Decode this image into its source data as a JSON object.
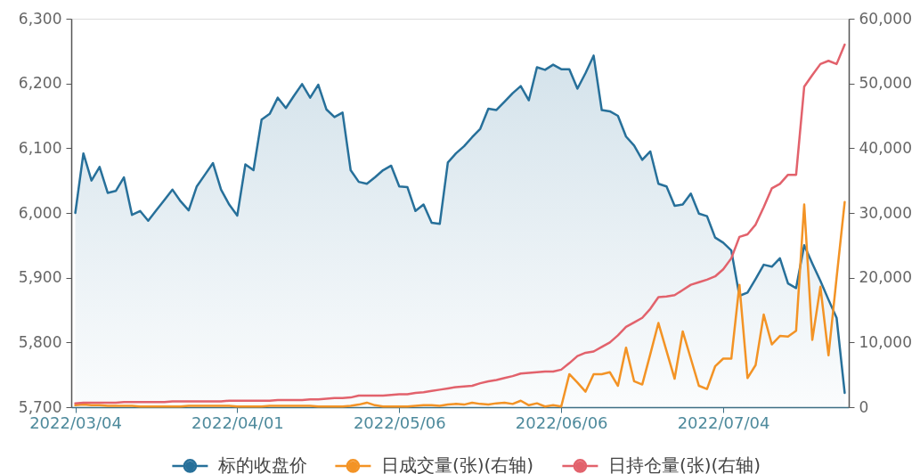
{
  "chart_data": {
    "type": "line",
    "categories": [
      "2022/03/04",
      null,
      null,
      null,
      null,
      null,
      null,
      null,
      null,
      null,
      null,
      null,
      null,
      null,
      null,
      null,
      null,
      null,
      null,
      null,
      "2022/04/01",
      null,
      null,
      null,
      null,
      null,
      null,
      null,
      null,
      null,
      null,
      null,
      null,
      null,
      null,
      null,
      null,
      null,
      null,
      null,
      "2022/05/06",
      null,
      null,
      null,
      null,
      null,
      null,
      null,
      null,
      null,
      null,
      null,
      null,
      null,
      null,
      null,
      null,
      null,
      null,
      null,
      "2022/06/06",
      null,
      null,
      null,
      null,
      null,
      null,
      null,
      null,
      null,
      null,
      null,
      null,
      null,
      null,
      null,
      null,
      null,
      null,
      null,
      "2022/07/04",
      null,
      null,
      null,
      null,
      null,
      null,
      null,
      null,
      null,
      null,
      null,
      null,
      null,
      null,
      null
    ],
    "series": [
      {
        "name": "标的收盘价",
        "type": "area",
        "color": "#27709a",
        "values": [
          6000,
          6092,
          6050,
          6071,
          6031,
          6034,
          6055,
          5997,
          6003,
          5988,
          6004,
          6020,
          6036,
          6018,
          6004,
          6041,
          6059,
          6077,
          6036,
          6013,
          5996,
          6075,
          6066,
          6144,
          6153,
          6178,
          6162,
          6181,
          6199,
          6178,
          6198,
          6160,
          6148,
          6155,
          6066,
          6048,
          6045,
          6055,
          6066,
          6073,
          6041,
          6040,
          6003,
          6013,
          5985,
          5983,
          6078,
          6092,
          6103,
          6117,
          6130,
          6161,
          6159,
          6172,
          6185,
          6196,
          6174,
          6225,
          6221,
          6229,
          6222,
          6222,
          6192,
          6216,
          6243,
          6159,
          6157,
          6150,
          6118,
          6104,
          6082,
          6095,
          6045,
          6041,
          6011,
          6013,
          6030,
          5999,
          5995,
          5962,
          5954,
          5942,
          5872,
          5877,
          5898,
          5920,
          5917,
          5930,
          5891,
          5884,
          5950,
          5922,
          5895,
          5866,
          5838,
          5722
        ]
      },
      {
        "name": "日成交量(张)(右轴)",
        "axis": "y2",
        "color": "#f39325",
        "values": [
          300,
          400,
          300,
          300,
          200,
          200,
          200,
          200,
          100,
          100,
          100,
          100,
          100,
          100,
          200,
          200,
          200,
          200,
          200,
          200,
          100,
          100,
          100,
          100,
          200,
          200,
          200,
          200,
          200,
          200,
          100,
          100,
          100,
          100,
          200,
          400,
          700,
          300,
          100,
          100,
          100,
          100,
          200,
          300,
          300,
          200,
          400,
          500,
          400,
          700,
          500,
          400,
          600,
          700,
          500,
          1000,
          300,
          600,
          100,
          300,
          100,
          5100,
          3800,
          2400,
          5100,
          5100,
          5400,
          3300,
          9200,
          4000,
          3500,
          8200,
          13000,
          8700,
          4400,
          11700,
          7500,
          3300,
          2800,
          6300,
          7500,
          7500,
          18900,
          4500,
          6500,
          14300,
          9700,
          11000,
          10900,
          11800,
          31300,
          10400,
          18600,
          8000,
          20000,
          31700
        ]
      },
      {
        "name": "日持仓量(张)(右轴)",
        "axis": "y2",
        "color": "#e2626c",
        "values": [
          600,
          700,
          700,
          700,
          700,
          700,
          800,
          800,
          800,
          800,
          800,
          800,
          900,
          900,
          900,
          900,
          900,
          900,
          900,
          1000,
          1000,
          1000,
          1000,
          1000,
          1000,
          1100,
          1100,
          1100,
          1100,
          1200,
          1200,
          1300,
          1400,
          1400,
          1500,
          1800,
          1800,
          1800,
          1800,
          1900,
          2000,
          2000,
          2200,
          2300,
          2500,
          2700,
          2900,
          3100,
          3200,
          3300,
          3700,
          4000,
          4200,
          4500,
          4800,
          5200,
          5300,
          5400,
          5500,
          5500,
          5800,
          6800,
          7900,
          8400,
          8600,
          9300,
          10000,
          11100,
          12400,
          13100,
          13800,
          15200,
          17000,
          17100,
          17300,
          18100,
          18900,
          19300,
          19700,
          20200,
          21300,
          23000,
          26300,
          26700,
          28200,
          30900,
          33800,
          34500,
          35900,
          35900,
          49500,
          51300,
          53000,
          53500,
          53000,
          56000
        ]
      }
    ],
    "ylim": [
      5700,
      6300
    ],
    "yticks": [
      {
        "value": 5700,
        "label": "5,700"
      },
      {
        "value": 5800,
        "label": "5,800"
      },
      {
        "value": 5900,
        "label": "5,900"
      },
      {
        "value": 6000,
        "label": "6,000"
      },
      {
        "value": 6100,
        "label": "6,100"
      },
      {
        "value": 6200,
        "label": "6,200"
      },
      {
        "value": 6300,
        "label": "6,300"
      }
    ],
    "y2lim": [
      0,
      60000
    ],
    "y2ticks": [
      0,
      {
        "value": 10000,
        "label": "10,000"
      },
      {
        "value": 20000,
        "label": "20,000"
      },
      {
        "value": 30000,
        "label": "30,000"
      },
      {
        "value": 40000,
        "label": "40,000"
      },
      {
        "value": 50000,
        "label": "50,000"
      },
      {
        "value": 60000,
        "label": "60,000"
      }
    ],
    "grid": false,
    "legend": "bottom"
  }
}
